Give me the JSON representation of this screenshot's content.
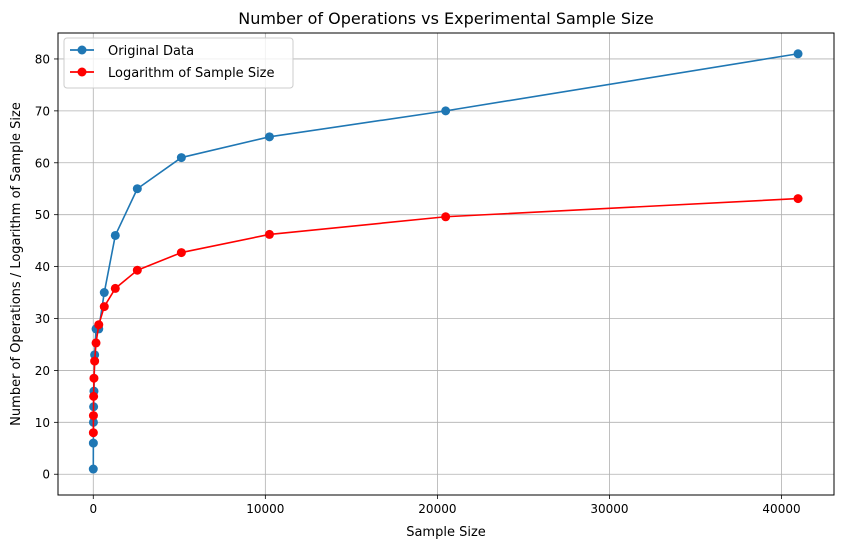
{
  "chart_data": {
    "type": "line",
    "title": "Number of Operations vs Experimental Sample Size",
    "xlabel": "Sample Size",
    "ylabel": "Number of Operations / Logarithm of Sample Size",
    "xlim": [
      -2050,
      43050
    ],
    "ylim": [
      -4,
      85
    ],
    "xticks": [
      0,
      10000,
      20000,
      30000,
      40000
    ],
    "xtick_labels": [
      "0",
      "10000",
      "20000",
      "30000",
      "40000"
    ],
    "yticks": [
      0,
      10,
      20,
      30,
      40,
      50,
      60,
      70,
      80
    ],
    "ytick_labels": [
      "0",
      "10",
      "20",
      "30",
      "40",
      "50",
      "60",
      "70",
      "80"
    ],
    "grid": true,
    "legend_position": "top-left",
    "series": [
      {
        "name": "Original Data",
        "color": "#1f77b4",
        "marker": "circle",
        "x": [
          1,
          5,
          10,
          20,
          40,
          80,
          160,
          320,
          640,
          1280,
          2560,
          5120,
          10240,
          20480,
          40960
        ],
        "y": [
          1,
          6,
          10,
          13,
          16,
          23,
          28,
          28,
          35,
          46,
          55,
          61,
          65,
          70,
          81
        ]
      },
      {
        "name": "Logarithm of Sample Size",
        "color": "#ff0000",
        "marker": "circle",
        "x": [
          5,
          10,
          20,
          40,
          80,
          160,
          320,
          640,
          1280,
          2560,
          5120,
          10240,
          20480,
          40960
        ],
        "y": [
          8.0,
          11.3,
          15.0,
          18.5,
          21.8,
          25.3,
          28.8,
          32.3,
          35.8,
          39.3,
          42.7,
          46.2,
          49.6,
          53.1
        ]
      }
    ]
  }
}
